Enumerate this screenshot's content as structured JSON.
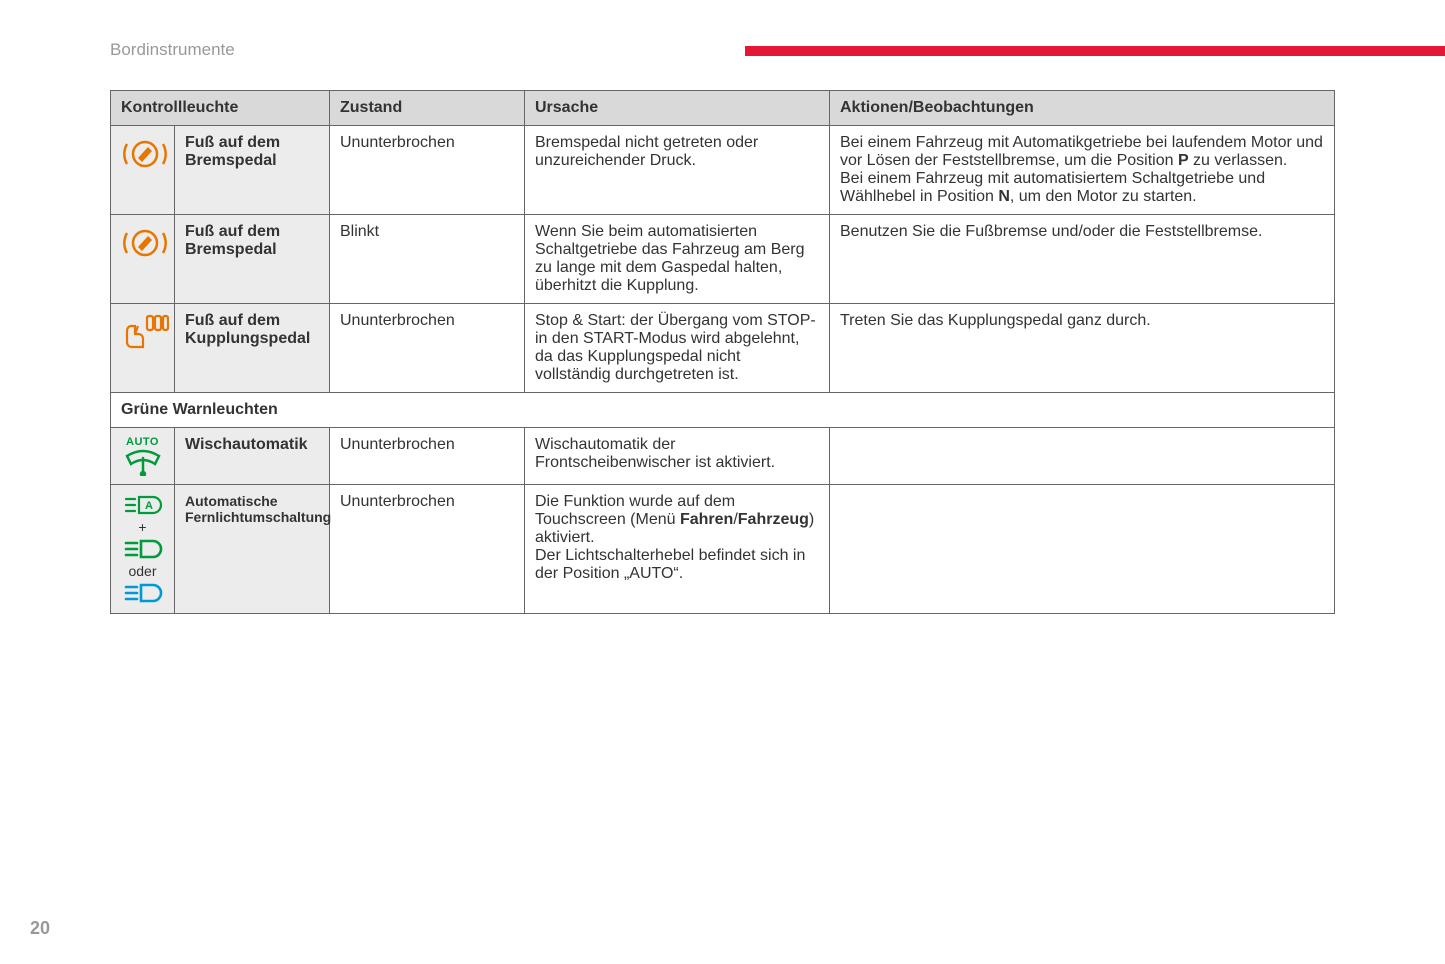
{
  "header": {
    "title": "Bordinstrumente"
  },
  "page_number": "20",
  "colors": {
    "accent_red": "#e41736",
    "header_bg": "#d9d9d9",
    "icon_bg": "#ececec",
    "border": "#666666",
    "text": "#333333",
    "page_num": "#999999",
    "orange": "#e87500",
    "green": "#009b3a",
    "blue": "#0099d8"
  },
  "table": {
    "columns": [
      "Kontrollleuchte",
      "Zustand",
      "Ursache",
      "Aktionen/Beobachtungen"
    ],
    "rows": [
      {
        "icon": "brake-pedal-foot",
        "icon_color": "#e87500",
        "label": "Fuß auf dem Bremspedal",
        "state": "Ununterbrochen",
        "cause": "Bremspedal nicht getreten oder unzureichender Druck.",
        "action_parts": [
          {
            "t": "Bei einem Fahrzeug mit Automatikgetriebe bei laufendem Motor und vor Lösen der Feststellbremse, um die Position "
          },
          {
            "t": "P",
            "b": true
          },
          {
            "t": " zu verlassen.\nBei einem Fahrzeug mit automatisiertem Schaltgetriebe und Wählhebel in Position "
          },
          {
            "t": "N",
            "b": true
          },
          {
            "t": ", um den Motor zu starten."
          }
        ]
      },
      {
        "icon": "brake-pedal-foot",
        "icon_color": "#e87500",
        "label": "Fuß auf dem Bremspedal",
        "state": "Blinkt",
        "cause": "Wenn Sie beim automatisierten Schaltgetriebe das Fahrzeug am Berg zu lange mit dem Gaspedal halten, überhitzt die Kupplung.",
        "action": "Benutzen Sie die Fußbremse und/oder die Feststellbremse."
      },
      {
        "icon": "clutch-pedal-foot",
        "icon_color": "#e87500",
        "label": "Fuß auf dem Kupplungspedal",
        "state": "Ununterbrochen",
        "cause": "Stop & Start: der Übergang vom STOP- in den START-Modus wird abgelehnt, da das Kupplungspedal nicht vollständig durchgetreten ist.",
        "action": "Treten Sie das Kupplungspedal ganz durch."
      }
    ],
    "section2_title": "Grüne Warnleuchten",
    "rows2": [
      {
        "icon": "auto-wiper",
        "icon_color": "#009b3a",
        "label": "Wischautomatik",
        "state": "Ununterbrochen",
        "cause": "Wischautomatik der Frontscheibenwischer ist aktiviert.",
        "action": ""
      },
      {
        "icon": "auto-high-beam",
        "label": "Automatische Fernlichtumschaltung",
        "state": "Ununterbrochen",
        "cause_parts": [
          {
            "t": "Die Funktion wurde auf dem Touchscreen (Menü "
          },
          {
            "t": "Fahren",
            "b": true
          },
          {
            "t": "/"
          },
          {
            "t": "Fahrzeug",
            "b": true
          },
          {
            "t": ") aktiviert.\nDer Lichtschalterhebel befindet sich in der Position „AUTO“."
          }
        ],
        "action": "",
        "connector1": "+",
        "connector2": "oder"
      }
    ]
  }
}
